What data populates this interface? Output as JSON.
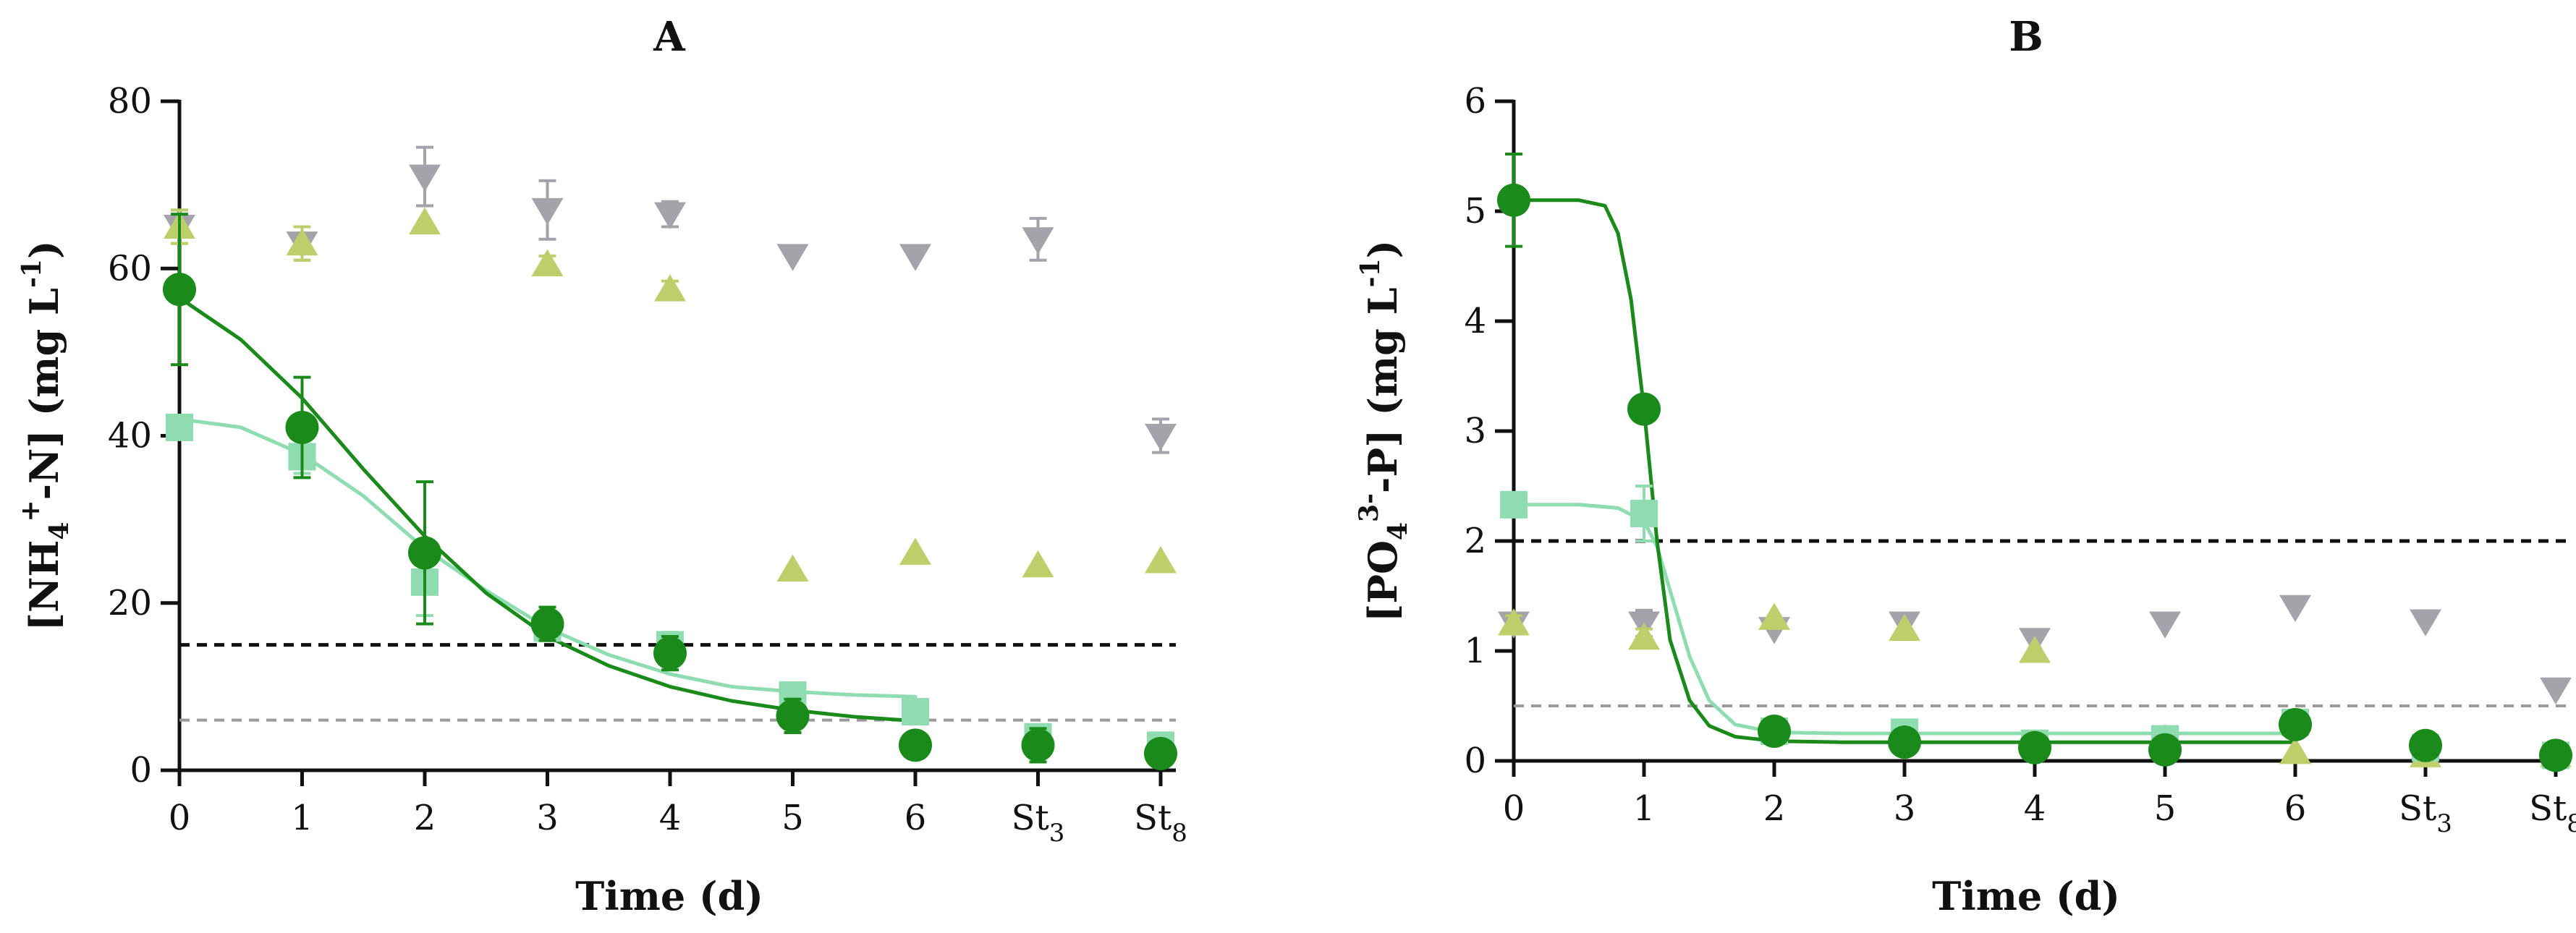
{
  "colors": {
    "dark_green": "#1a8a1a",
    "light_green": "#8fdcb0",
    "olive": "#bccf6b",
    "gray": "#a3a3a9",
    "black_dash": "#111111",
    "gray_dash": "#9a9a9a"
  },
  "chart_data": [
    {
      "type": "scatter",
      "title": "A",
      "xlabel": "Time (d)",
      "ylabel": "[NH4+-N] (mg L-1)",
      "ylabel_parts": {
        "main": "[NH",
        "sub": "4",
        "sup": "+",
        "rest": "-N] (mg L",
        "unit_sup": "-1",
        "end": ")"
      },
      "x_ticks": [
        {
          "text": "0",
          "sub": ""
        },
        {
          "text": "1",
          "sub": ""
        },
        {
          "text": "2",
          "sub": ""
        },
        {
          "text": "3",
          "sub": ""
        },
        {
          "text": "4",
          "sub": ""
        },
        {
          "text": "5",
          "sub": ""
        },
        {
          "text": "6",
          "sub": ""
        },
        {
          "text": "St",
          "sub": "3"
        },
        {
          "text": "St",
          "sub": "8"
        }
      ],
      "xlim": [
        0,
        8
      ],
      "ylim": [
        0,
        80
      ],
      "y_ticks": [
        0,
        20,
        40,
        60,
        80
      ],
      "hlines": [
        {
          "y": 15,
          "style": "black_dash"
        },
        {
          "y": 6,
          "style": "gray_dash"
        }
      ],
      "series": [
        {
          "name": "gray-triangle-down",
          "marker": "tri-down",
          "color_key": "gray",
          "x": [
            0,
            1,
            2,
            3,
            4,
            5,
            6,
            7,
            8
          ],
          "y": [
            65,
            63,
            71,
            67,
            66.5,
            61.5,
            61.5,
            63.5,
            40
          ],
          "err": [
            2,
            2,
            3.5,
            3.5,
            1.5,
            0,
            0,
            2.5,
            2
          ]
        },
        {
          "name": "olive-triangle-up",
          "marker": "tri-up",
          "color_key": "olive",
          "x": [
            0,
            1,
            2,
            3,
            4,
            5,
            6,
            7,
            8
          ],
          "y": [
            65,
            63,
            65.5,
            60.5,
            57.5,
            24,
            26,
            24.5,
            25
          ],
          "err": [
            2,
            2,
            0,
            1,
            1,
            0,
            0,
            0,
            0
          ]
        },
        {
          "name": "light-green-square",
          "marker": "square",
          "color_key": "light_green",
          "x": [
            0,
            1,
            2,
            3,
            4,
            5,
            6,
            7,
            8
          ],
          "y": [
            41,
            37.5,
            22.5,
            17,
            15,
            9,
            7,
            4,
            3
          ],
          "err": [
            0,
            2,
            4,
            1,
            1.5,
            0,
            0,
            1,
            0
          ]
        },
        {
          "name": "dark-green-circle",
          "marker": "circle",
          "color_key": "dark_green",
          "x": [
            0,
            1,
            2,
            3,
            4,
            5,
            6,
            7,
            8
          ],
          "y": [
            57.5,
            41,
            26,
            17.5,
            14,
            6.5,
            3,
            3,
            2
          ],
          "err": [
            9,
            6,
            8.5,
            2,
            2,
            2,
            1.5,
            2,
            0
          ]
        }
      ],
      "fits": [
        {
          "name": "light-green-fit",
          "color_key": "light_green",
          "x": [
            0,
            0.5,
            1,
            1.5,
            2,
            2.5,
            3,
            3.5,
            4,
            4.5,
            5,
            5.5,
            6
          ],
          "y": [
            42,
            41,
            37.8,
            32.8,
            26.5,
            21.5,
            17,
            13.8,
            11.5,
            10,
            9.4,
            9,
            8.8
          ]
        },
        {
          "name": "dark-green-fit",
          "color_key": "dark_green",
          "x": [
            0,
            0.5,
            1,
            1.5,
            2,
            2.5,
            3,
            3.5,
            4,
            4.5,
            5,
            5.5,
            6
          ],
          "y": [
            56.5,
            51.5,
            44.5,
            36,
            28,
            21.2,
            16,
            12.5,
            10,
            8.3,
            7.2,
            6.4,
            5.9
          ]
        }
      ]
    },
    {
      "type": "scatter",
      "title": "B",
      "xlabel": "Time (d)",
      "ylabel": "[PO43--P] (mg L-1)",
      "ylabel_parts": {
        "main": "[PO",
        "sub": "4",
        "sup": "3-",
        "rest": "-P] (mg L",
        "unit_sup": "-1",
        "end": ")"
      },
      "x_ticks": [
        {
          "text": "0",
          "sub": ""
        },
        {
          "text": "1",
          "sub": ""
        },
        {
          "text": "2",
          "sub": ""
        },
        {
          "text": "3",
          "sub": ""
        },
        {
          "text": "4",
          "sub": ""
        },
        {
          "text": "5",
          "sub": ""
        },
        {
          "text": "6",
          "sub": ""
        },
        {
          "text": "St",
          "sub": "3"
        },
        {
          "text": "St",
          "sub": "8"
        }
      ],
      "xlim": [
        0,
        8
      ],
      "ylim": [
        0,
        6
      ],
      "y_ticks": [
        0,
        1,
        2,
        3,
        4,
        5,
        6
      ],
      "hlines": [
        {
          "y": 2,
          "style": "black_dash"
        },
        {
          "y": 0.5,
          "style": "gray_dash"
        }
      ],
      "series": [
        {
          "name": "gray-triangle-down",
          "marker": "tri-down",
          "color_key": "gray",
          "x": [
            0,
            1,
            2,
            3,
            4,
            5,
            6,
            7,
            8
          ],
          "y": [
            1.25,
            1.25,
            1.2,
            1.25,
            1.1,
            1.25,
            1.4,
            1.27,
            0.65
          ],
          "err": [
            0.07,
            0.12,
            0,
            0,
            0,
            0,
            0,
            0,
            0
          ]
        },
        {
          "name": "olive-triangle-up",
          "marker": "tri-up",
          "color_key": "olive",
          "x": [
            0,
            1,
            2,
            3,
            4,
            5,
            6,
            7,
            8
          ],
          "y": [
            1.25,
            1.12,
            1.3,
            1.2,
            1.0,
            0.2,
            0.08,
            0.05,
            0.05
          ],
          "err": [
            0.07,
            0.08,
            0,
            0,
            0,
            0,
            0,
            0,
            0
          ]
        },
        {
          "name": "light-green-square",
          "marker": "square",
          "color_key": "light_green",
          "x": [
            0,
            1,
            2,
            3,
            4,
            5,
            6,
            7,
            8
          ],
          "y": [
            2.33,
            2.25,
            0.27,
            0.26,
            0.16,
            0.2,
            0.35,
            0.12,
            0.05
          ],
          "err": [
            0,
            0.25,
            0,
            0.06,
            0,
            0,
            0,
            0,
            0
          ]
        },
        {
          "name": "dark-green-circle",
          "marker": "circle",
          "color_key": "dark_green",
          "x": [
            0,
            1,
            2,
            3,
            4,
            5,
            6,
            7,
            8
          ],
          "y": [
            5.1,
            3.2,
            0.27,
            0.17,
            0.12,
            0.1,
            0.33,
            0.14,
            0.05
          ],
          "err": [
            0.42,
            0.05,
            0,
            0,
            0,
            0,
            0,
            0,
            0
          ]
        }
      ],
      "fits": [
        {
          "name": "light-green-fit",
          "color_key": "light_green",
          "x": [
            0,
            0.5,
            0.8,
            1.0,
            1.1,
            1.2,
            1.35,
            1.5,
            1.7,
            2,
            2.5,
            3,
            4,
            5,
            6
          ],
          "y": [
            2.33,
            2.33,
            2.3,
            2.18,
            1.95,
            1.55,
            0.95,
            0.55,
            0.33,
            0.26,
            0.25,
            0.25,
            0.25,
            0.25,
            0.25
          ]
        },
        {
          "name": "dark-green-fit",
          "color_key": "dark_green",
          "x": [
            0,
            0.5,
            0.7,
            0.8,
            0.9,
            1.0,
            1.1,
            1.2,
            1.35,
            1.5,
            1.7,
            2,
            2.5,
            3,
            4,
            5,
            6
          ],
          "y": [
            5.1,
            5.1,
            5.05,
            4.8,
            4.2,
            3.2,
            2.0,
            1.1,
            0.55,
            0.32,
            0.22,
            0.18,
            0.17,
            0.17,
            0.17,
            0.17,
            0.17
          ]
        }
      ]
    }
  ]
}
